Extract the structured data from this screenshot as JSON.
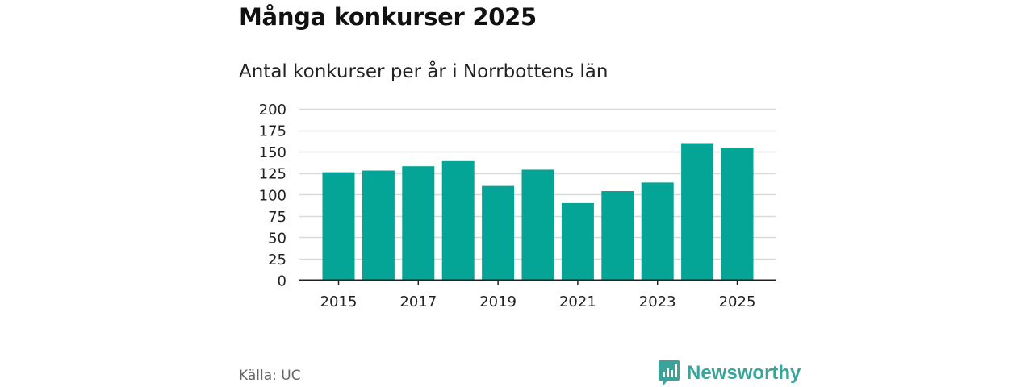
{
  "chart_data": {
    "type": "bar",
    "title": "Många konkurser 2025",
    "subtitle": "Antal konkurser per år i Norrbottens län",
    "xlabel": "",
    "ylabel": "",
    "categories": [
      "2015",
      "2016",
      "2017",
      "2018",
      "2019",
      "2020",
      "2021",
      "2022",
      "2023",
      "2024",
      "2025"
    ],
    "values": [
      126,
      128,
      133,
      139,
      110,
      129,
      90,
      104,
      114,
      160,
      154
    ],
    "x_tick_labels": [
      "2015",
      "2017",
      "2019",
      "2021",
      "2023",
      "2025"
    ],
    "y_ticks": [
      0,
      25,
      50,
      75,
      100,
      125,
      150,
      175,
      200
    ],
    "ylim": [
      0,
      200
    ],
    "grid": true,
    "legend": "none",
    "bar_color": "#04a497"
  },
  "footer": {
    "source": "Källa: UC",
    "brand": "Newsworthy",
    "brand_color": "#3aa39a"
  },
  "icons": {
    "brand_logo": "newsworthy-logo-icon"
  }
}
